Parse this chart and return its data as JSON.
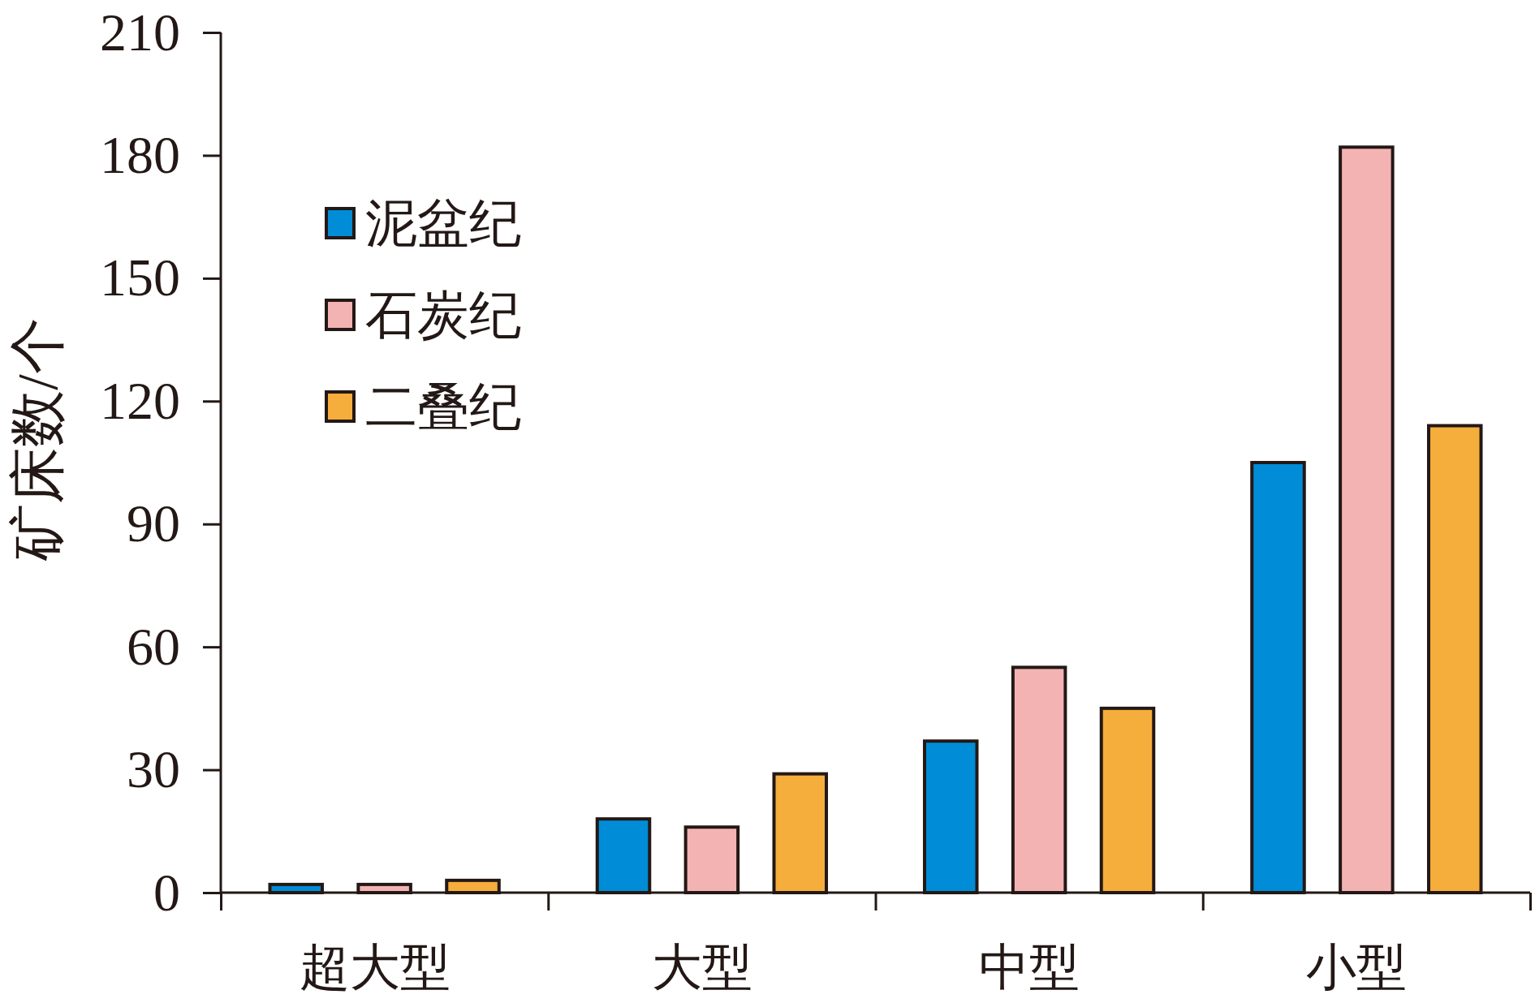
{
  "chart_data": {
    "type": "bar",
    "ylabel": "矿床数/个",
    "categories": [
      "超大型",
      "大型",
      "中型",
      "小型"
    ],
    "series": [
      {
        "name": "泥盆纪",
        "color": "#008cd6",
        "values": [
          2,
          18,
          37,
          105
        ]
      },
      {
        "name": "石炭纪",
        "color": "#f4b3b3",
        "values": [
          2,
          16,
          55,
          182
        ]
      },
      {
        "name": "二叠纪",
        "color": "#f5ad3c",
        "values": [
          3,
          29,
          45,
          114
        ]
      }
    ],
    "ylim": [
      0,
      210
    ],
    "yticks": [
      0,
      30,
      60,
      90,
      120,
      150,
      180,
      210
    ],
    "legend": "top left"
  }
}
